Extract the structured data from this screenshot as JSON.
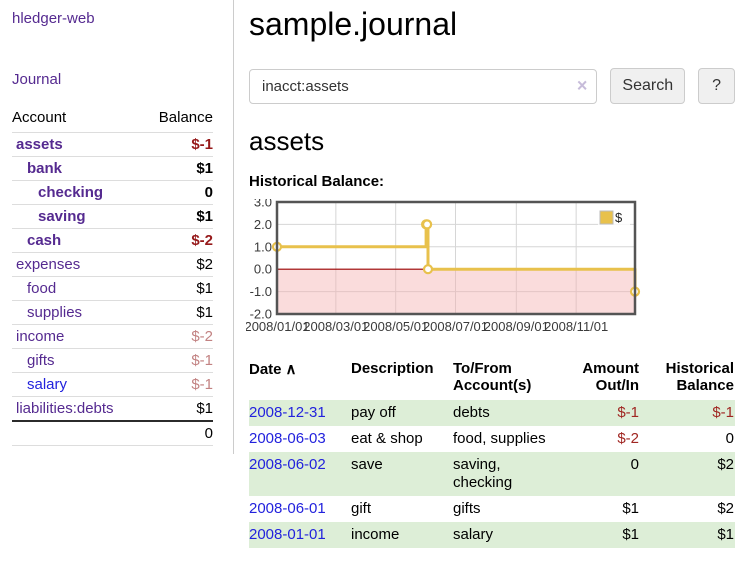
{
  "sidebar": {
    "app_title": "hledger-web",
    "journal_link": "Journal",
    "accounts_table": {
      "headers": {
        "account": "Account",
        "balance": "Balance"
      },
      "rows": [
        {
          "account": "assets",
          "balance": "$-1",
          "level": 1,
          "bold": true,
          "negative": true
        },
        {
          "account": "bank",
          "balance": "$1",
          "level": 2,
          "bold": true,
          "negative": false
        },
        {
          "account": "checking",
          "balance": "0",
          "level": 3,
          "bold": true,
          "negative": false
        },
        {
          "account": "saving",
          "balance": "$1",
          "level": 3,
          "bold": true,
          "negative": false
        },
        {
          "account": "cash",
          "balance": "$-2",
          "level": 2,
          "bold": true,
          "negative": true
        },
        {
          "account": "expenses",
          "balance": "$2",
          "level": 1,
          "bold": false,
          "negative": false
        },
        {
          "account": "food",
          "balance": "$1",
          "level": 2,
          "bold": false,
          "negative": false
        },
        {
          "account": "supplies",
          "balance": "$1",
          "level": 2,
          "bold": false,
          "negative": false
        },
        {
          "account": "income",
          "balance": "$-2",
          "level": 1,
          "bold": false,
          "negative": true
        },
        {
          "account": "gifts",
          "balance": "$-1",
          "level": 2,
          "bold": false,
          "negative": true
        },
        {
          "account": "salary",
          "balance": "$-1",
          "level": 2,
          "bold": false,
          "negative": true,
          "link_color": "blue"
        },
        {
          "account": "liabilities:debts",
          "balance": "$1",
          "level": 1,
          "bold": false,
          "negative": false
        }
      ],
      "total": "0"
    }
  },
  "header": {
    "title": "sample.journal"
  },
  "search": {
    "query": "inacct:assets",
    "clear_icon": "×",
    "search_button": "Search",
    "help_button": "?"
  },
  "main": {
    "account_heading": "assets",
    "chart_title": "Historical Balance:"
  },
  "chart_data": {
    "type": "line",
    "step": true,
    "title": "Historical Balance:",
    "series": [
      {
        "name": "$",
        "color": "#e8c14c",
        "x": [
          "2008-01-01",
          "2008-06-01",
          "2008-06-02",
          "2008-06-03",
          "2008-12-31"
        ],
        "values": [
          1,
          2,
          2,
          0,
          -1
        ]
      }
    ],
    "x_range": [
      "2008-01-01",
      "2008-12-31"
    ],
    "ylim": [
      -2,
      3
    ],
    "x_ticks": [
      "2008/01/01",
      "2008/03/01",
      "2008/05/01",
      "2008/07/01",
      "2008/09/01",
      "2008/11/01"
    ],
    "y_ticks": [
      "3.0",
      "2.0",
      "1.0",
      "0.0",
      "-1.0",
      "-2.0"
    ],
    "grid": true,
    "legend": {
      "label": "$",
      "position": "top-right"
    },
    "zero_line_color": "#990000",
    "negative_region_color": "#f3b1b1",
    "border_color": "#545454"
  },
  "register_table": {
    "headers": {
      "date": "Date",
      "description": "Description",
      "accounts": "To/From Account(s)",
      "amount": "Amount Out/In",
      "balance": "Historical Balance"
    },
    "sort_indicator": "∧",
    "rows": [
      {
        "date": "2008-12-31",
        "description": "pay off",
        "accounts": "debts",
        "amount": "$-1",
        "balance": "$-1"
      },
      {
        "date": "2008-06-03",
        "description": "eat & shop",
        "accounts": "food, supplies",
        "amount": "$-2",
        "balance": "0"
      },
      {
        "date": "2008-06-02",
        "description": "save",
        "accounts": "saving, checking",
        "amount": "0",
        "balance": "$2"
      },
      {
        "date": "2008-06-01",
        "description": "gift",
        "accounts": "gifts",
        "amount": "$1",
        "balance": "$2"
      },
      {
        "date": "2008-01-01",
        "description": "income",
        "accounts": "salary",
        "amount": "$1",
        "balance": "$1"
      }
    ]
  },
  "colors": {
    "purple_link": "#552a90",
    "blue_link": "#2222dd",
    "negative_strong": "#96191a",
    "negative_soft": "#c28282",
    "negative_table": "#a02622",
    "row_stripe_green": "#ddeed7",
    "chart_gold": "#e8c14c",
    "chart_negative_region": "#fad9d9"
  }
}
